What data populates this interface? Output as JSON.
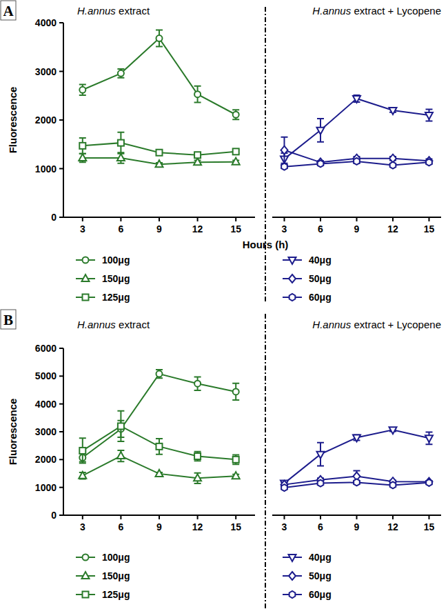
{
  "chart_data": [
    {
      "type": "line",
      "panel": "A",
      "title": "H.annus extract",
      "xlabel": "Hours (h)",
      "ylabel": "Fluorescence",
      "x": [
        3,
        6,
        9,
        12,
        15
      ],
      "xlim": [
        1.5,
        16.5
      ],
      "xticks": [
        3,
        6,
        9,
        12,
        15
      ],
      "ylim": [
        0,
        4000
      ],
      "yticks": [
        0,
        1000,
        2000,
        3000,
        4000
      ],
      "series": [
        {
          "name": "100μg",
          "color": "#2a7a2a",
          "marker": "circle",
          "values": [
            2620,
            2960,
            3680,
            2530,
            2110
          ],
          "errors": [
            110,
            90,
            170,
            170,
            100
          ]
        },
        {
          "name": "150μg",
          "color": "#2a7a2a",
          "marker": "triangle-up",
          "values": [
            1220,
            1220,
            1090,
            1130,
            1140
          ],
          "errors": [
            90,
            110,
            30,
            40,
            30
          ]
        },
        {
          "name": "125μg",
          "color": "#2a7a2a",
          "marker": "square",
          "values": [
            1470,
            1530,
            1330,
            1280,
            1350
          ],
          "errors": [
            160,
            220,
            40,
            30,
            40
          ]
        }
      ]
    },
    {
      "type": "line",
      "title": "H.annus extract + Lycopene",
      "x": [
        3,
        6,
        9,
        12,
        15
      ],
      "xlim": [
        2,
        16
      ],
      "xticks": [
        3,
        6,
        9,
        12,
        15
      ],
      "ylim": [
        0,
        4000
      ],
      "yticks": [
        0,
        1000,
        2000,
        3000,
        4000
      ],
      "tick_labels": "x",
      "series": [
        {
          "name": "40μg",
          "color": "#1c1c8c",
          "marker": "triangle-down",
          "values": [
            1200,
            1790,
            2440,
            2200,
            2100
          ],
          "errors": [
            120,
            240,
            70,
            40,
            120
          ]
        },
        {
          "name": "50μg",
          "color": "#1c1c8c",
          "marker": "diamond",
          "values": [
            1380,
            1130,
            1210,
            1210,
            1160
          ],
          "errors": [
            270,
            30,
            40,
            40,
            40
          ]
        },
        {
          "name": "60μg",
          "color": "#1c1c8c",
          "marker": "hexagon",
          "values": [
            1040,
            1100,
            1150,
            1070,
            1130
          ],
          "errors": [
            30,
            30,
            40,
            30,
            30
          ]
        }
      ]
    },
    {
      "type": "line",
      "panel": "B",
      "title": "H.annus extract",
      "ylabel": "Fluorescence",
      "x": [
        3,
        6,
        9,
        12,
        15
      ],
      "xlim": [
        1.5,
        16.5
      ],
      "xticks": [
        3,
        6,
        9,
        12,
        15
      ],
      "ylim": [
        0,
        6000
      ],
      "yticks": [
        0,
        1000,
        2000,
        3000,
        4000,
        5000,
        6000
      ],
      "series": [
        {
          "name": "100μg",
          "color": "#2a7a2a",
          "marker": "circle",
          "values": [
            2070,
            3100,
            5080,
            4730,
            4440
          ],
          "errors": [
            150,
            300,
            150,
            240,
            300
          ]
        },
        {
          "name": "150μg",
          "color": "#2a7a2a",
          "marker": "triangle-up",
          "values": [
            1420,
            2130,
            1490,
            1330,
            1410
          ],
          "errors": [
            120,
            200,
            50,
            190,
            60
          ]
        },
        {
          "name": "125μg",
          "color": "#2a7a2a",
          "marker": "square",
          "values": [
            2320,
            3200,
            2470,
            2120,
            2000
          ],
          "errors": [
            450,
            550,
            280,
            170,
            170
          ]
        }
      ]
    },
    {
      "type": "line",
      "title": "H.annus extract + Lycopene",
      "x": [
        3,
        6,
        9,
        12,
        15
      ],
      "xlim": [
        2,
        16
      ],
      "xticks": [
        3,
        6,
        9,
        12,
        15
      ],
      "ylim": [
        0,
        6000
      ],
      "yticks": [
        0,
        1000,
        2000,
        3000,
        4000,
        5000,
        6000
      ],
      "tick_labels": "x",
      "series": [
        {
          "name": "40μg",
          "color": "#1c1c8c",
          "marker": "triangle-down",
          "values": [
            1150,
            2190,
            2790,
            3070,
            2770
          ],
          "errors": [
            80,
            420,
            100,
            60,
            220
          ]
        },
        {
          "name": "50μg",
          "color": "#1c1c8c",
          "marker": "diamond",
          "values": [
            1100,
            1270,
            1400,
            1210,
            1200
          ],
          "errors": [
            80,
            60,
            200,
            40,
            40
          ]
        },
        {
          "name": "60μg",
          "color": "#1c1c8c",
          "marker": "hexagon",
          "values": [
            990,
            1150,
            1180,
            1080,
            1170
          ],
          "errors": [
            50,
            60,
            50,
            40,
            40
          ]
        }
      ]
    }
  ]
}
